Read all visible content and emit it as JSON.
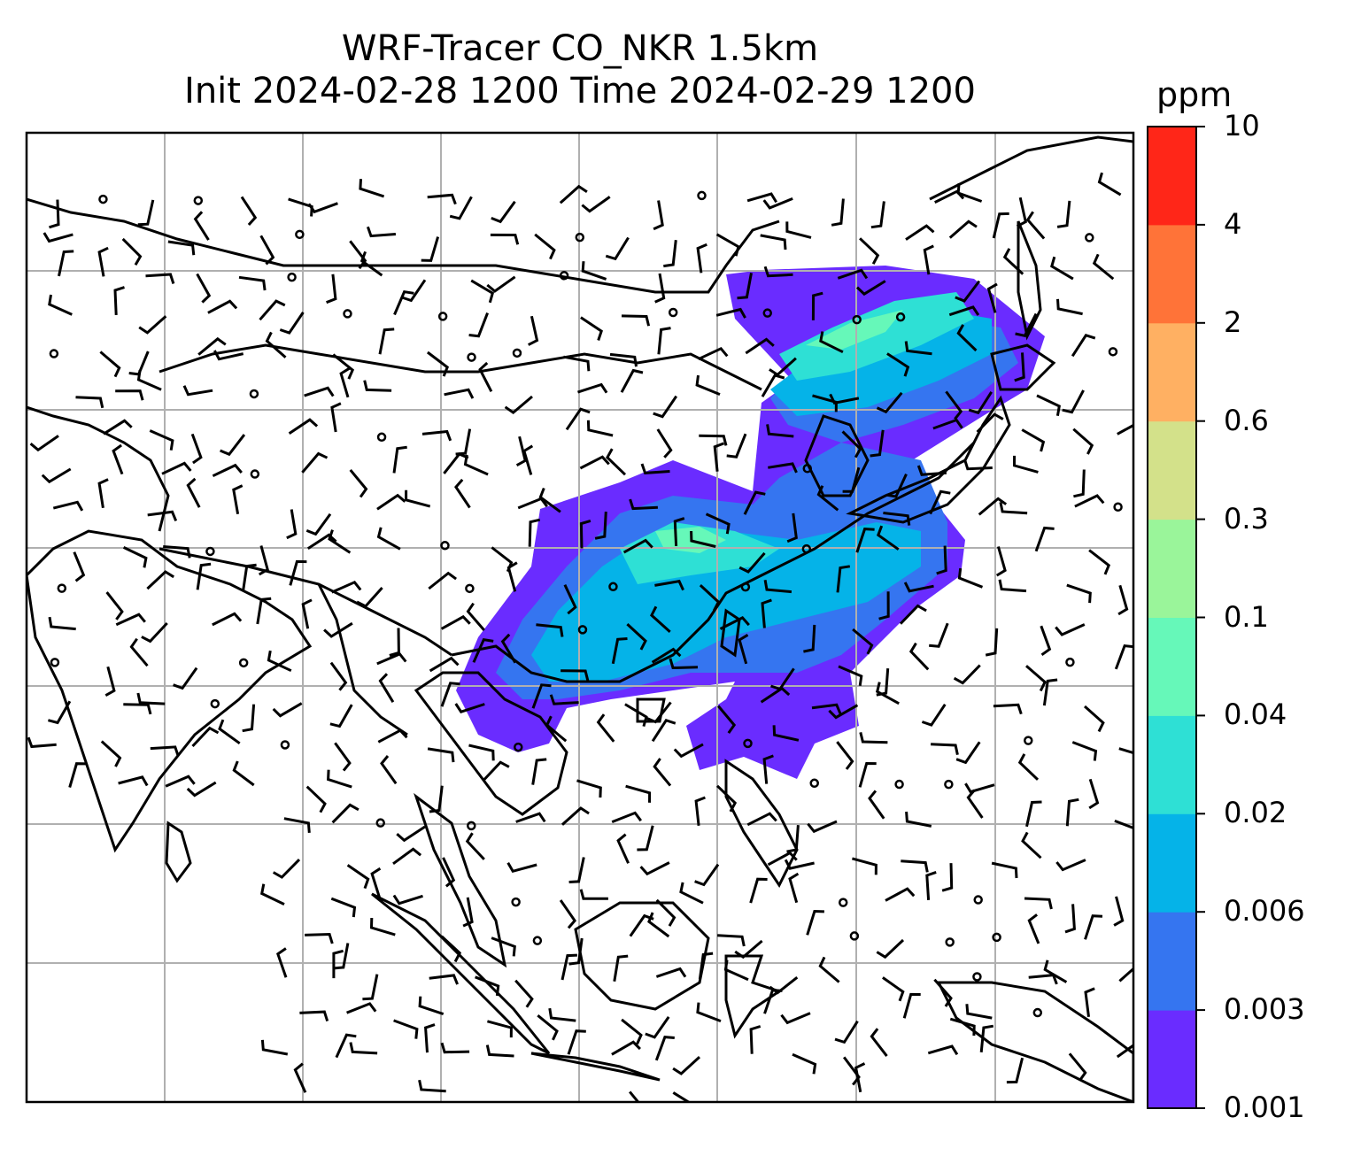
{
  "title": {
    "line1": "WRF-Tracer CO_NKR 1.5km",
    "line2": "Init 2024-02-28 1200 Time 2024-02-29 1200"
  },
  "colorbar": {
    "unit": "ppm",
    "levels": [
      "0.001",
      "0.003",
      "0.006",
      "0.02",
      "0.04",
      "0.1",
      "0.3",
      "0.6",
      "2",
      "4",
      "10"
    ],
    "colors": [
      "#6a2cff",
      "#3575f0",
      "#05b3e8",
      "#2ee0d5",
      "#66f8b9",
      "#9af59a",
      "#d3e18a",
      "#ffb062",
      "#ff7338",
      "#ff2618"
    ]
  },
  "map": {
    "field": "CO_NKR tracer concentration",
    "overlay": "wind barbs",
    "gridlines": true,
    "coastlines": true
  }
}
